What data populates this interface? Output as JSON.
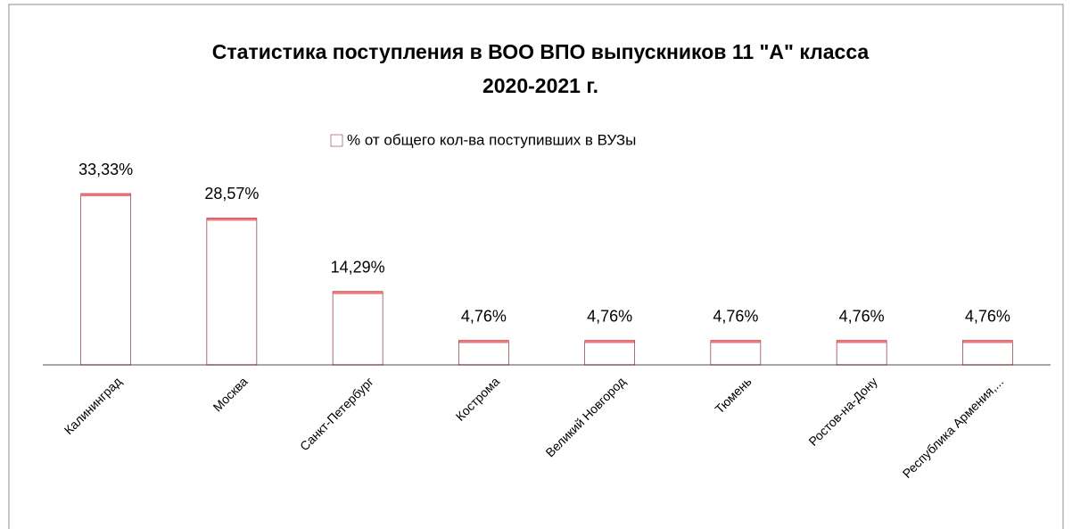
{
  "chart_data": {
    "type": "bar",
    "title": [
      "Статистика поступления в ВОО ВПО выпускников 11 \"А\" класса",
      "2020-2021 г."
    ],
    "categories": [
      "Калининград",
      "Москва",
      "Санкт-Петербург",
      "Кострома",
      "Великий Новгород",
      "Тюмень",
      "Ростов-на-Дону",
      "Республика Армения,..."
    ],
    "series": [
      {
        "name": "% от общего кол-ва поступивших в ВУЗы",
        "color": "#c8262c",
        "values": [
          33.33,
          28.57,
          14.29,
          4.76,
          4.76,
          4.76,
          4.76,
          4.76
        ],
        "value_labels": [
          "33,33%",
          "28,57%",
          "14,29%",
          "4,76%",
          "4,76%",
          "4,76%",
          "4,76%",
          "4,76%"
        ]
      }
    ],
    "legend": "top"
  }
}
